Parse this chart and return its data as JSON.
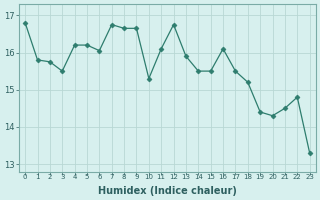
{
  "x": [
    0,
    1,
    2,
    3,
    4,
    5,
    6,
    7,
    8,
    9,
    10,
    11,
    12,
    13,
    14,
    15,
    16,
    17,
    18,
    19,
    20,
    21,
    22,
    23
  ],
  "y": [
    16.8,
    15.8,
    15.75,
    15.5,
    16.2,
    16.2,
    16.05,
    16.75,
    16.65,
    16.65,
    15.3,
    16.1,
    16.75,
    15.9,
    15.5,
    15.5,
    16.1,
    15.5,
    15.2,
    14.4,
    14.3,
    14.5,
    14.8,
    13.3
  ],
  "line_color": "#2e7d6e",
  "marker": "D",
  "marker_size": 2.5,
  "bg_color": "#d7f0ee",
  "grid_color": "#b8d8d4",
  "grid_color_minor": "#c8e4e0",
  "xlabel": "Humidex (Indice chaleur)",
  "ylim": [
    12.8,
    17.3
  ],
  "xlim": [
    -0.5,
    23.5
  ],
  "yticks": [
    13,
    14,
    15,
    16,
    17
  ],
  "xticks": [
    0,
    1,
    2,
    3,
    4,
    5,
    6,
    7,
    8,
    9,
    10,
    11,
    12,
    13,
    14,
    15,
    16,
    17,
    18,
    19,
    20,
    21,
    22,
    23
  ],
  "xlabel_fontsize": 7,
  "ytick_fontsize": 6,
  "xtick_fontsize": 5
}
